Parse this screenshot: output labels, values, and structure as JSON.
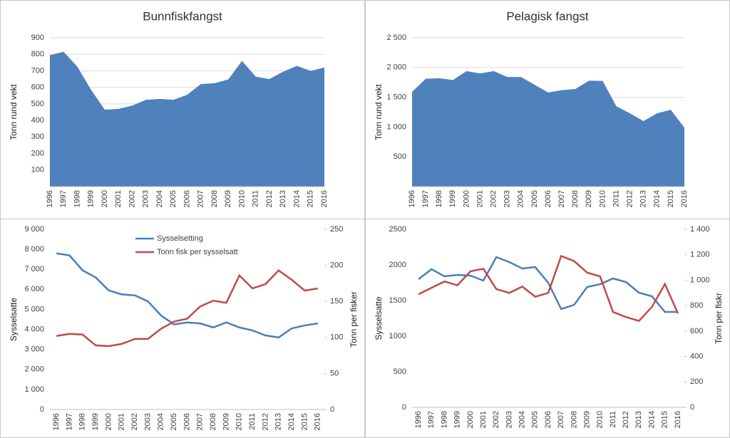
{
  "chart_data": [
    {
      "type": "area",
      "title": "Bunnfiskfangst",
      "y_label": "Tonn rund vekt",
      "color": "#4f81bd",
      "grid": true,
      "categories": [
        "1996",
        "1997",
        "1998",
        "1999",
        "2000",
        "2001",
        "2002",
        "2003",
        "2004",
        "2005",
        "2006",
        "2007",
        "2008",
        "2009",
        "2010",
        "2011",
        "2012",
        "2013",
        "2014",
        "2015",
        "2016"
      ],
      "values": [
        795,
        815,
        725,
        585,
        465,
        470,
        490,
        525,
        530,
        525,
        555,
        620,
        625,
        648,
        760,
        665,
        650,
        695,
        730,
        700,
        720
      ],
      "ylim": [
        0,
        900
      ],
      "yticks": [
        100,
        200,
        300,
        400,
        500,
        600,
        700,
        800,
        900
      ]
    },
    {
      "type": "area",
      "title": "Pelagisk fangst",
      "y_label": "Tonn rund vekt",
      "color": "#4f81bd",
      "grid": true,
      "categories": [
        "1996",
        "1997",
        "1998",
        "1999",
        "2000",
        "2001",
        "2002",
        "2003",
        "2004",
        "2005",
        "2006",
        "2007",
        "2008",
        "2009",
        "2010",
        "2011",
        "2012",
        "2013",
        "2014",
        "2015",
        "2016"
      ],
      "values": [
        1590,
        1810,
        1820,
        1790,
        1940,
        1900,
        1940,
        1840,
        1840,
        1710,
        1580,
        1620,
        1640,
        1780,
        1775,
        1350,
        1230,
        1100,
        1230,
        1290,
        990
      ],
      "ylim": [
        0,
        2500
      ],
      "yticks": [
        500,
        {
          "value": 1000,
          "label": "1 000"
        },
        {
          "value": 1500,
          "label": "1 500"
        },
        {
          "value": 2000,
          "label": "2 000"
        },
        {
          "value": 2500,
          "label": "2 500"
        }
      ]
    },
    {
      "type": "line",
      "y_label": "Sysselsatte",
      "y2_label": "Tonn per fisker",
      "grid": false,
      "legend": "top",
      "categories": [
        "1996",
        "1997",
        "1998",
        "1999",
        "2000",
        "2001",
        "2002",
        "2003",
        "2004",
        "2005",
        "2006",
        "2007",
        "2008",
        "2009",
        "2010",
        "2011",
        "2012",
        "2013",
        "2014",
        "2015",
        "2016"
      ],
      "series": [
        {
          "name": "Sysselsetting",
          "color": "#4a7ebb",
          "values": [
            7800,
            7700,
            6950,
            6600,
            5950,
            5750,
            5700,
            5400,
            4700,
            4250,
            4350,
            4300,
            4100,
            4350,
            4100,
            3950,
            3700,
            3600,
            4050,
            4200,
            4300
          ]
        },
        {
          "name": "Tonn fisk per sysselsatt",
          "color": "#be4b48",
          "axis": "y2",
          "values": [
            102,
            105,
            104,
            89,
            88,
            91,
            98,
            98,
            112,
            122,
            126,
            143,
            151,
            148,
            186,
            168,
            174,
            193,
            180,
            165,
            168
          ]
        }
      ],
      "ylim": [
        0,
        9000
      ],
      "yticks": [
        0,
        {
          "value": 1000,
          "label": "1 000"
        },
        {
          "value": 2000,
          "label": "2 000"
        },
        {
          "value": 3000,
          "label": "3 000"
        },
        {
          "value": 4000,
          "label": "4 000"
        },
        {
          "value": 5000,
          "label": "5 000"
        },
        {
          "value": 6000,
          "label": "6 000"
        },
        {
          "value": 7000,
          "label": "7 000"
        },
        {
          "value": 8000,
          "label": "8 000"
        },
        {
          "value": 9000,
          "label": "9 000"
        }
      ],
      "y2lim": [
        0,
        250
      ],
      "y2ticks": [
        0,
        50,
        100,
        150,
        200,
        250
      ]
    },
    {
      "type": "line",
      "y_label": "Sysselsatte",
      "y2_label": "Tonn per fiskr",
      "grid": false,
      "categories": [
        "1996",
        "1997",
        "1998",
        "1999",
        "2000",
        "2001",
        "2002",
        "2003",
        "2004",
        "2005",
        "2006",
        "2007",
        "2008",
        "2009",
        "2010",
        "2011",
        "2012",
        "2013",
        "2014",
        "2015",
        "2016"
      ],
      "series": [
        {
          "color": "#4a7ebb",
          "values": [
            1800,
            1940,
            1840,
            1860,
            1850,
            1780,
            2110,
            2040,
            1950,
            1970,
            1750,
            1380,
            1440,
            1690,
            1730,
            1810,
            1760,
            1610,
            1560,
            1340,
            1340
          ]
        },
        {
          "color": "#be4b48",
          "axis": "y2",
          "values": [
            890,
            940,
            990,
            960,
            1070,
            1090,
            930,
            900,
            950,
            870,
            900,
            1190,
            1150,
            1060,
            1030,
            750,
            710,
            680,
            790,
            970,
            740
          ]
        }
      ],
      "ylim": [
        0,
        2500
      ],
      "yticks": [
        0,
        500,
        1000,
        1500,
        2000,
        2500
      ],
      "y2lim": [
        0,
        1400
      ],
      "y2ticks": [
        0,
        200,
        400,
        600,
        800,
        {
          "value": 1000,
          "label": "1 000"
        },
        {
          "value": 1200,
          "label": "1 200"
        },
        {
          "value": 1400,
          "label": "1 400"
        }
      ]
    }
  ]
}
